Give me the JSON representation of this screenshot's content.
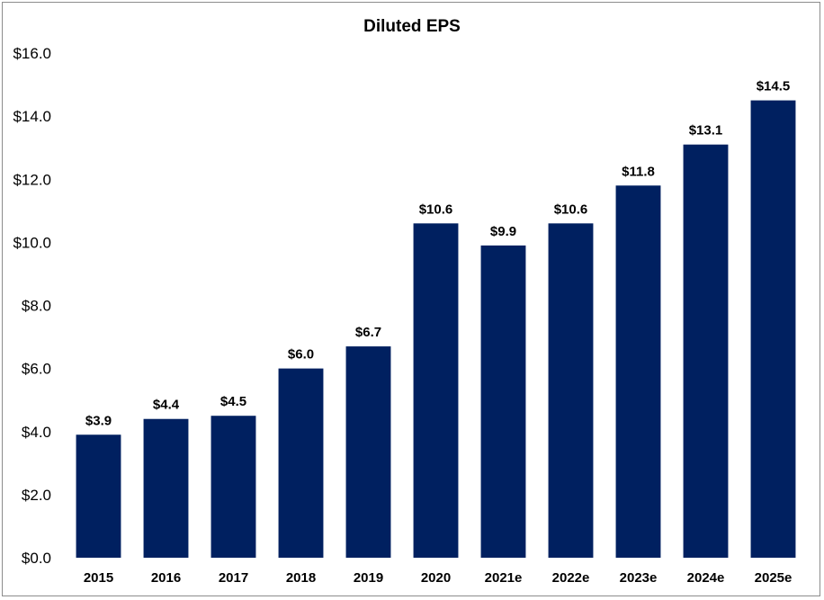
{
  "chart_data": {
    "type": "bar",
    "title": "Diluted EPS",
    "xlabel": "",
    "ylabel": "",
    "categories": [
      "2015",
      "2016",
      "2017",
      "2018",
      "2019",
      "2020",
      "2021e",
      "2022e",
      "2023e",
      "2024e",
      "2025e"
    ],
    "values": [
      3.9,
      4.4,
      4.5,
      6.0,
      6.7,
      10.6,
      9.9,
      10.6,
      11.8,
      13.1,
      14.5
    ],
    "data_labels": [
      "$3.9",
      "$4.4",
      "$4.5",
      "$6.0",
      "$6.7",
      "$10.6",
      "$9.9",
      "$10.6",
      "$11.8",
      "$13.1",
      "$14.5"
    ],
    "ylim": [
      0,
      16
    ],
    "yticks": [
      "$0.0",
      "$2.0",
      "$4.0",
      "$6.0",
      "$8.0",
      "$10.0",
      "$12.0",
      "$14.0",
      "$16.0"
    ],
    "grid": false,
    "legend": "none",
    "bar_color": "#002060"
  }
}
